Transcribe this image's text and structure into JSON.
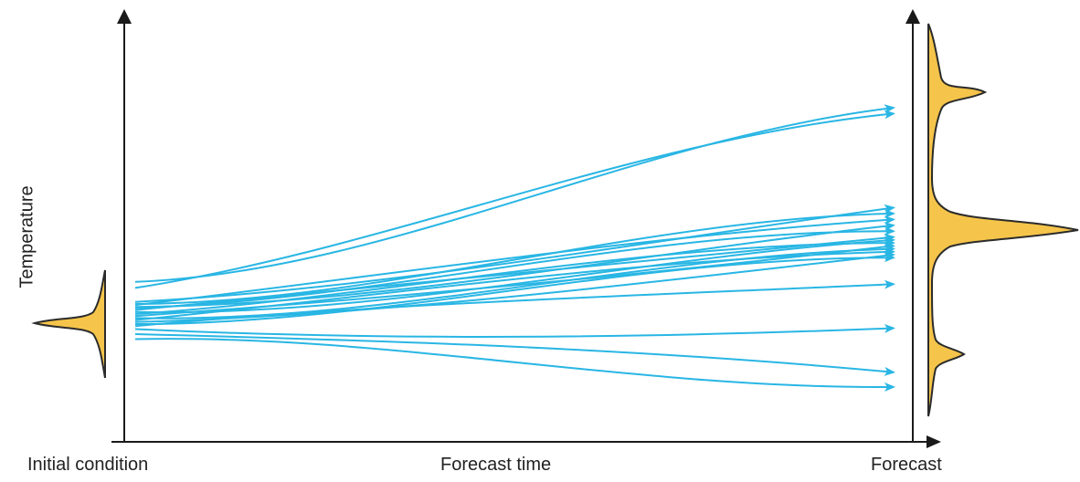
{
  "labels": {
    "y_axis": "Temperature",
    "x_start": "Initial condition",
    "x_middle": "Forecast time",
    "x_end": "Forecast"
  },
  "colors": {
    "trajectory": "#29b6e4",
    "distribution_fill": "#f5c44a",
    "distribution_stroke": "#2b2b2b",
    "axis": "#1a1a1a"
  },
  "trajectories": [
    {
      "start_rel": 0.92,
      "end_rel": 1.0
    },
    {
      "start_rel": 0.86,
      "end_rel": 0.98
    },
    {
      "start_rel": 0.72,
      "end_rel": 0.66
    },
    {
      "start_rel": 0.7,
      "end_rel": 0.64
    },
    {
      "start_rel": 0.69,
      "end_rel": 0.62
    },
    {
      "start_rel": 0.67,
      "end_rel": 0.6
    },
    {
      "start_rel": 0.66,
      "end_rel": 0.58
    },
    {
      "start_rel": 0.64,
      "end_rel": 0.56
    },
    {
      "start_rel": 0.62,
      "end_rel": 0.55
    },
    {
      "start_rel": 0.6,
      "end_rel": 0.54
    },
    {
      "start_rel": 0.58,
      "end_rel": 0.53
    },
    {
      "start_rel": 0.56,
      "end_rel": 0.52
    },
    {
      "start_rel": 0.54,
      "end_rel": 0.51
    },
    {
      "start_rel": 0.52,
      "end_rel": 0.5
    },
    {
      "start_rel": 0.5,
      "end_rel": 0.49
    },
    {
      "start_rel": 0.48,
      "end_rel": 0.4
    },
    {
      "start_rel": 0.45,
      "end_rel": 0.25
    },
    {
      "start_rel": 0.4,
      "end_rel": 0.1
    },
    {
      "start_rel": 0.35,
      "end_rel": 0.05
    }
  ]
}
